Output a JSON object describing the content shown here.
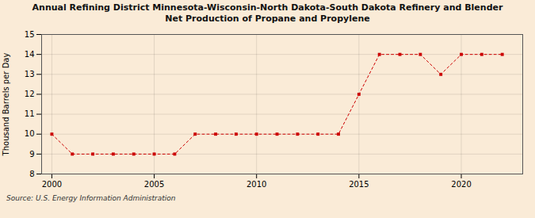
{
  "chart_data": {
    "type": "line",
    "title": "Annual Refining District Minnesota-Wisconsin-North Dakota-South Dakota Refinery and Blender\nNet Production of Propane and Propylene",
    "ylabel": "Thousand Barrels per Day",
    "source": "Source: U.S. Energy Information Administration",
    "x": [
      2000,
      2001,
      2002,
      2003,
      2004,
      2005,
      2006,
      2007,
      2008,
      2009,
      2010,
      2011,
      2012,
      2013,
      2014,
      2015,
      2016,
      2017,
      2018,
      2019,
      2020,
      2021,
      2022
    ],
    "values": [
      10,
      9,
      9,
      9,
      9,
      9,
      9,
      10,
      10,
      10,
      10,
      10,
      10,
      10,
      10,
      12,
      14,
      14,
      14,
      13,
      14,
      14,
      14
    ],
    "color": "#cc0000",
    "marker": "square",
    "line_style": "dashed",
    "xlim": [
      1999.5,
      2023
    ],
    "xticks": [
      2000,
      2005,
      2010,
      2015,
      2020
    ],
    "ylim": [
      8,
      15
    ],
    "yticks": [
      8,
      9,
      10,
      11,
      12,
      13,
      14,
      15
    ],
    "grid": true
  }
}
